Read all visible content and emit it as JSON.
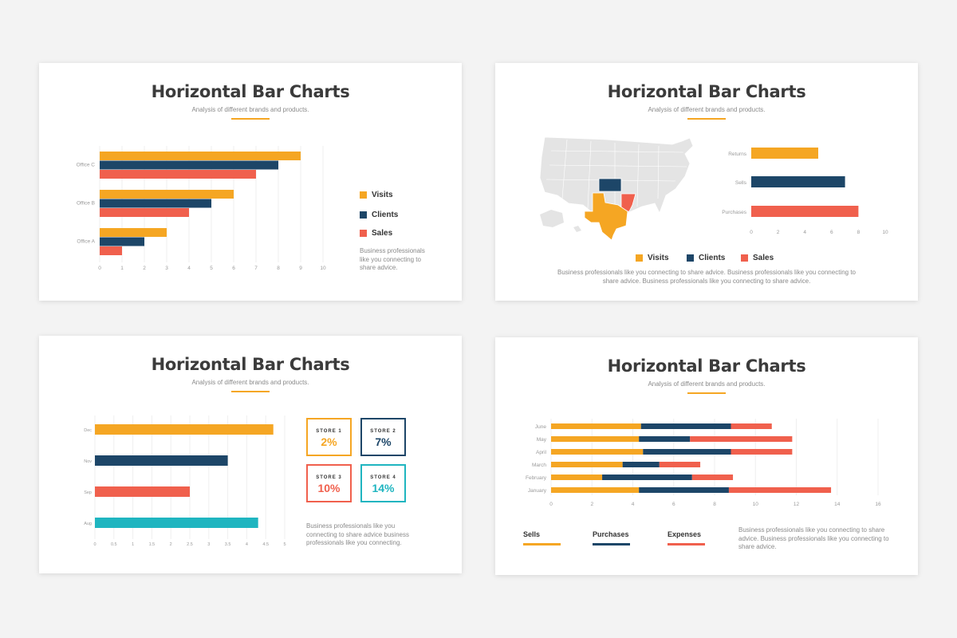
{
  "slides": [
    {
      "title": "Horizontal Bar Charts",
      "subtitle": "Analysis of different brands and products.",
      "legend": [
        "Visits",
        "Clients",
        "Sales"
      ],
      "paragraph": "Business professionals like you connecting to share advice."
    },
    {
      "title": "Horizontal Bar Charts",
      "subtitle": "Analysis of different brands and products.",
      "legend": [
        "Visits",
        "Clients",
        "Sales"
      ],
      "paragraph": "Business professionals like you connecting to share advice. Business professionals like you connecting to share advice. Business professionals like you connecting to share advice."
    },
    {
      "title": "Horizontal Bar Charts",
      "subtitle": "Analysis of different brands and products.",
      "stores": [
        {
          "label": "STORE 1",
          "value": "2%",
          "color": "#f5a623"
        },
        {
          "label": "STORE 2",
          "value": "7%",
          "color": "#1d4668"
        },
        {
          "label": "STORE 3",
          "value": "10%",
          "color": "#f0604d"
        },
        {
          "label": "STORE 4",
          "value": "14%",
          "color": "#1fb5c0"
        }
      ],
      "paragraph": "Business professionals like you connecting to share advice business professionals like you connecting."
    },
    {
      "title": "Horizontal Bar Charts",
      "subtitle": "Analysis of different brands and products.",
      "legend": [
        "Sells",
        "Purchases",
        "Expenses"
      ],
      "paragraph": "Business professionals like you connecting to share advice. Business professionals like you connecting to share advice."
    }
  ],
  "colors": {
    "orange": "#f5a623",
    "navy": "#1d4668",
    "coral": "#f0604d",
    "teal": "#1fb5c0",
    "map_base": "#e4e4e4"
  },
  "chart_data": [
    {
      "type": "bar",
      "orientation": "horizontal",
      "categories": [
        "Office C",
        "Office B",
        "Office A"
      ],
      "series": [
        {
          "name": "Visits",
          "values": [
            9,
            6,
            3
          ]
        },
        {
          "name": "Clients",
          "values": [
            8,
            5,
            2
          ]
        },
        {
          "name": "Sales",
          "values": [
            7,
            4,
            1
          ]
        }
      ],
      "xlim": [
        0,
        10
      ],
      "xticks": [
        0,
        1,
        2,
        3,
        4,
        5,
        6,
        7,
        8,
        9,
        10
      ],
      "grid": true,
      "legend": "right"
    },
    {
      "type": "bar",
      "orientation": "horizontal",
      "categories": [
        "Returns",
        "Sells",
        "Purchases"
      ],
      "values": [
        5,
        7,
        8
      ],
      "xlim": [
        0,
        10
      ],
      "xticks": [
        0,
        2,
        4,
        6,
        8,
        10
      ],
      "grid": false,
      "legend": "bottom"
    },
    {
      "type": "bar",
      "orientation": "horizontal",
      "categories": [
        "Dec",
        "Nov",
        "Sep",
        "Aug"
      ],
      "values": [
        4.7,
        3.5,
        2.5,
        4.3
      ],
      "xlim": [
        0,
        5
      ],
      "xticks": [
        0,
        0.5,
        1,
        1.5,
        2,
        2.5,
        3,
        3.5,
        4,
        4.5,
        5
      ],
      "grid": true
    },
    {
      "type": "bar",
      "orientation": "horizontal",
      "stacked": true,
      "categories": [
        "June",
        "May",
        "April",
        "March",
        "February",
        "January"
      ],
      "series": [
        {
          "name": "Sells",
          "values": [
            4.4,
            4.3,
            4.5,
            3.5,
            2.5,
            4.3
          ]
        },
        {
          "name": "Purchases",
          "values": [
            4.4,
            2.5,
            4.3,
            1.8,
            4.4,
            4.4
          ]
        },
        {
          "name": "Expenses",
          "values": [
            2.0,
            5.0,
            3.0,
            2.0,
            2.0,
            5.0
          ]
        }
      ],
      "xlim": [
        0,
        16
      ],
      "xticks": [
        0,
        2,
        4,
        6,
        8,
        10,
        12,
        14,
        16
      ],
      "grid": true,
      "legend": "bottom"
    }
  ]
}
